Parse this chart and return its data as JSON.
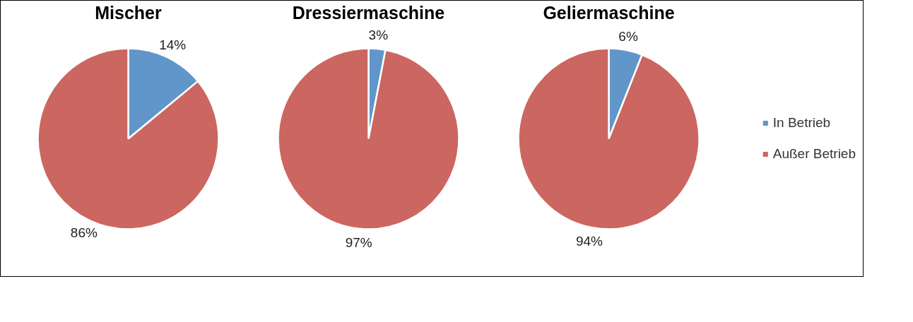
{
  "chart_data": [
    {
      "type": "pie",
      "title": "Mischer",
      "values": [
        14,
        86
      ],
      "value_labels": [
        "14%",
        "86%"
      ],
      "colors": [
        "#6096c9",
        "#cc6660"
      ]
    },
    {
      "type": "pie",
      "title": "Dressiermaschine",
      "values": [
        3,
        97
      ],
      "value_labels": [
        "3%",
        "97%"
      ],
      "colors": [
        "#6096c9",
        "#cc6660"
      ]
    },
    {
      "type": "pie",
      "title": "Geliermaschine",
      "categories": [
        "In Betrieb",
        "Außer Betrieb"
      ],
      "values": [
        6,
        94
      ],
      "value_labels": [
        "6%",
        "94%"
      ],
      "colors": [
        "#6096c9",
        "#cc6660"
      ],
      "legend": "right"
    }
  ]
}
